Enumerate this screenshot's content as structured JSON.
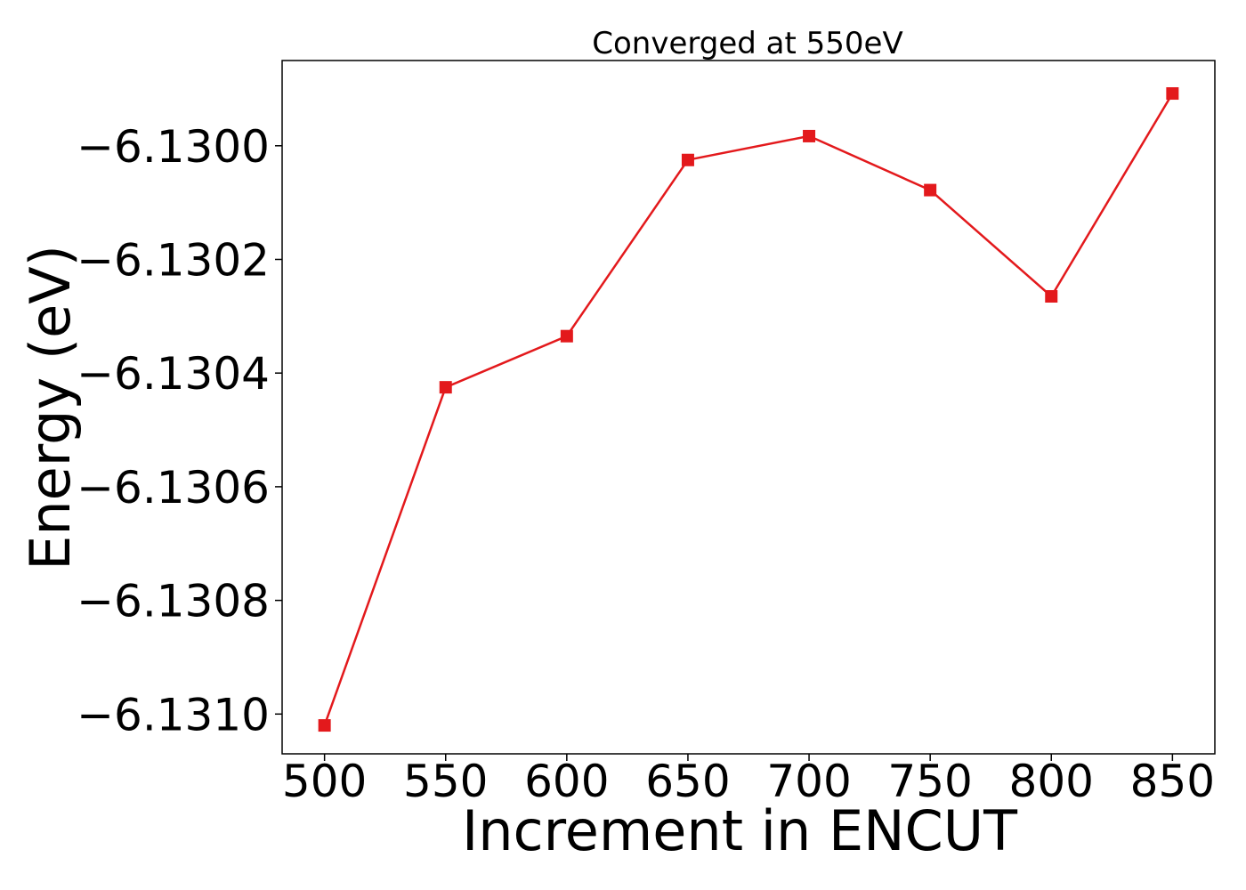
{
  "chart_data": {
    "type": "line",
    "title": "Converged at 550eV",
    "xlabel": "Increment in ENCUT",
    "ylabel": "Energy (eV)",
    "xlim": [
      482.5,
      867.5
    ],
    "ylim": [
      -6.13107,
      -6.12985
    ],
    "xticks": [
      500,
      550,
      600,
      650,
      700,
      750,
      800,
      850
    ],
    "xtick_labels": [
      "500",
      "550",
      "600",
      "650",
      "700",
      "750",
      "800",
      "850"
    ],
    "yticks": [
      -6.131,
      -6.1308,
      -6.1306,
      -6.1304,
      -6.1302,
      -6.13
    ],
    "ytick_labels": [
      "−6.1310",
      "−6.1308",
      "−6.1306",
      "−6.1304",
      "−6.1302",
      "−6.1300"
    ],
    "grid": false,
    "legend": "none",
    "series": [
      {
        "color": "#e3191c",
        "marker": "square",
        "x": [
          500,
          550,
          600,
          650,
          700,
          750,
          800,
          850
        ],
        "y": [
          -6.13102,
          -6.130425,
          -6.130335,
          -6.130025,
          -6.129983,
          -6.130078,
          -6.130265,
          -6.129908
        ]
      }
    ]
  }
}
